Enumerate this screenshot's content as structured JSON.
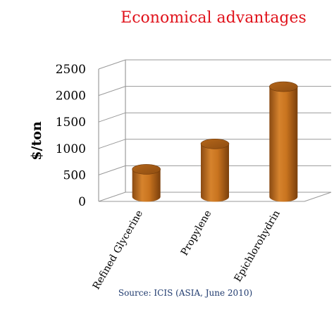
{
  "chart_data": {
    "type": "bar",
    "title": "Economical advantages",
    "ylabel": "$/ton",
    "xlabel": "",
    "categories": [
      "Refined Glycerine",
      "Propylene",
      "Epichlorohydrin"
    ],
    "values": [
      520,
      1000,
      2080
    ],
    "yticks": [
      0,
      500,
      1000,
      1500,
      2000,
      2500
    ],
    "ylim": [
      0,
      2500
    ],
    "grid": true,
    "bar_style": "3d-cylinder",
    "bar_color": "#c9741f",
    "title_color": "#e0121b",
    "source": "Source: ICIS (ASIA, June 2010)"
  }
}
